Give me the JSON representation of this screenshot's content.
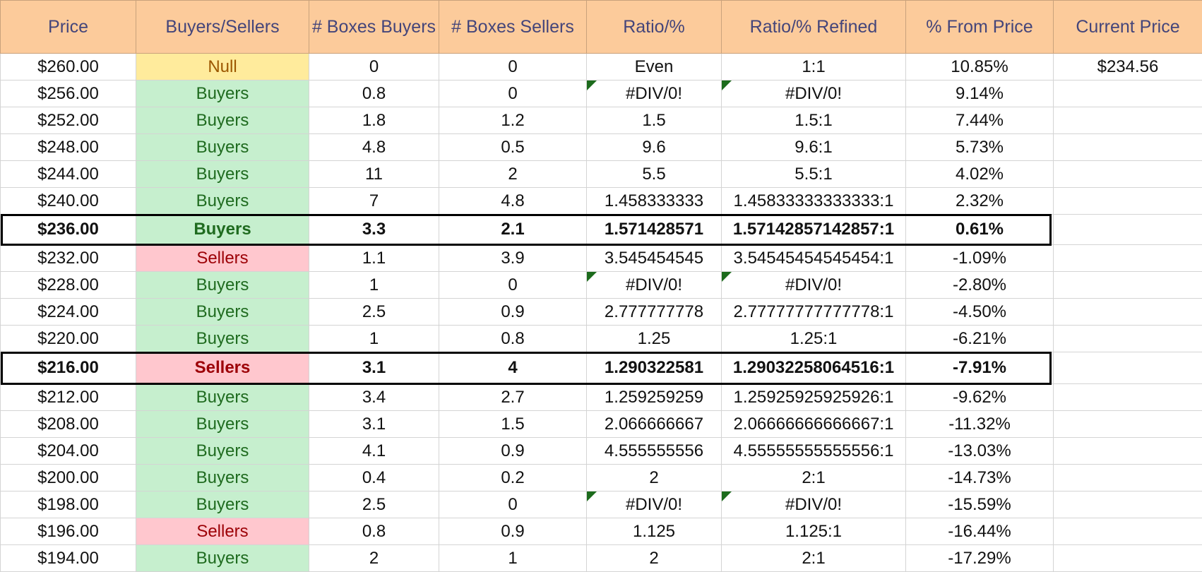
{
  "headers": [
    "Price",
    "Buyers/Sellers",
    "# Boxes Buyers",
    "# Boxes Sellers",
    "Ratio/%",
    "Ratio/% Refined",
    "% From Price",
    "Current Price"
  ],
  "current_price": "$234.56",
  "rows": [
    {
      "price": "$260.00",
      "side": "Null",
      "buyers": "0",
      "sellers": "0",
      "ratio": "Even",
      "refined": "1:1",
      "pct": "10.85%"
    },
    {
      "price": "$256.00",
      "side": "Buyers",
      "buyers": "0.8",
      "sellers": "0",
      "ratio": "#DIV/0!",
      "refined": "#DIV/0!",
      "pct": "9.14%"
    },
    {
      "price": "$252.00",
      "side": "Buyers",
      "buyers": "1.8",
      "sellers": "1.2",
      "ratio": "1.5",
      "refined": "1.5:1",
      "pct": "7.44%"
    },
    {
      "price": "$248.00",
      "side": "Buyers",
      "buyers": "4.8",
      "sellers": "0.5",
      "ratio": "9.6",
      "refined": "9.6:1",
      "pct": "5.73%"
    },
    {
      "price": "$244.00",
      "side": "Buyers",
      "buyers": "11",
      "sellers": "2",
      "ratio": "5.5",
      "refined": "5.5:1",
      "pct": "4.02%"
    },
    {
      "price": "$240.00",
      "side": "Buyers",
      "buyers": "7",
      "sellers": "4.8",
      "ratio": "1.458333333",
      "refined": "1.45833333333333:1",
      "pct": "2.32%"
    },
    {
      "price": "$236.00",
      "side": "Buyers",
      "buyers": "3.3",
      "sellers": "2.1",
      "ratio": "1.571428571",
      "refined": "1.57142857142857:1",
      "pct": "0.61%"
    },
    {
      "price": "$232.00",
      "side": "Sellers",
      "buyers": "1.1",
      "sellers": "3.9",
      "ratio": "3.545454545",
      "refined": "3.54545454545454:1",
      "pct": "-1.09%"
    },
    {
      "price": "$228.00",
      "side": "Buyers",
      "buyers": "1",
      "sellers": "0",
      "ratio": "#DIV/0!",
      "refined": "#DIV/0!",
      "pct": "-2.80%"
    },
    {
      "price": "$224.00",
      "side": "Buyers",
      "buyers": "2.5",
      "sellers": "0.9",
      "ratio": "2.777777778",
      "refined": "2.77777777777778:1",
      "pct": "-4.50%"
    },
    {
      "price": "$220.00",
      "side": "Buyers",
      "buyers": "1",
      "sellers": "0.8",
      "ratio": "1.25",
      "refined": "1.25:1",
      "pct": "-6.21%"
    },
    {
      "price": "$216.00",
      "side": "Sellers",
      "buyers": "3.1",
      "sellers": "4",
      "ratio": "1.290322581",
      "refined": "1.29032258064516:1",
      "pct": "-7.91%"
    },
    {
      "price": "$212.00",
      "side": "Buyers",
      "buyers": "3.4",
      "sellers": "2.7",
      "ratio": "1.259259259",
      "refined": "1.25925925925926:1",
      "pct": "-9.62%"
    },
    {
      "price": "$208.00",
      "side": "Buyers",
      "buyers": "3.1",
      "sellers": "1.5",
      "ratio": "2.066666667",
      "refined": "2.06666666666667:1",
      "pct": "-11.32%"
    },
    {
      "price": "$204.00",
      "side": "Buyers",
      "buyers": "4.1",
      "sellers": "0.9",
      "ratio": "4.555555556",
      "refined": "4.55555555555556:1",
      "pct": "-13.03%"
    },
    {
      "price": "$200.00",
      "side": "Buyers",
      "buyers": "0.4",
      "sellers": "0.2",
      "ratio": "2",
      "refined": "2:1",
      "pct": "-14.73%"
    },
    {
      "price": "$198.00",
      "side": "Buyers",
      "buyers": "2.5",
      "sellers": "0",
      "ratio": "#DIV/0!",
      "refined": "#DIV/0!",
      "pct": "-15.59%"
    },
    {
      "price": "$196.00",
      "side": "Sellers",
      "buyers": "0.8",
      "sellers": "0.9",
      "ratio": "1.125",
      "refined": "1.125:1",
      "pct": "-16.44%"
    },
    {
      "price": "$194.00",
      "side": "Buyers",
      "buyers": "2",
      "sellers": "1",
      "ratio": "2",
      "refined": "2:1",
      "pct": "-17.29%"
    }
  ]
}
